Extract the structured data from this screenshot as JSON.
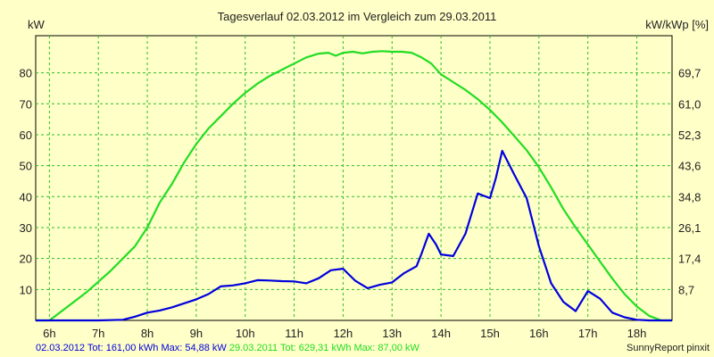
{
  "chart_data": {
    "type": "line",
    "title": "Tagesverlauf 02.03.2012 im Vergleich zum 29.03.2011",
    "ylabel_left": "kW",
    "ylabel_right": "kW/kWp [%]",
    "xlim": [
      5.72,
      18.72
    ],
    "ylim": [
      0,
      92
    ],
    "x_ticks": [
      6,
      7,
      8,
      9,
      10,
      11,
      12,
      13,
      14,
      15,
      16,
      17,
      18
    ],
    "x_tick_labels": [
      "6h",
      "7h",
      "8h",
      "9h",
      "10h",
      "11h",
      "12h",
      "13h",
      "14h",
      "15h",
      "16h",
      "17h",
      "18h"
    ],
    "y_ticks_left": [
      10,
      20,
      30,
      40,
      50,
      60,
      70,
      80
    ],
    "y_tick_labels_left": [
      "10",
      "20",
      "30",
      "40",
      "50",
      "60",
      "70",
      "80"
    ],
    "y_ticks_right": [
      10,
      20,
      30,
      40,
      50,
      60,
      70,
      80
    ],
    "y_tick_labels_right": [
      "8,7",
      "17,4",
      "26,1",
      "34,8",
      "43,6",
      "52,3",
      "61,0",
      "69,7"
    ],
    "grid": true,
    "series": [
      {
        "name": "29.03.2011",
        "color": "#22dd22",
        "x": [
          5.72,
          6.0,
          6.25,
          6.5,
          6.75,
          7.0,
          7.25,
          7.5,
          7.75,
          8.0,
          8.25,
          8.5,
          8.75,
          9.0,
          9.25,
          9.5,
          9.75,
          10.0,
          10.25,
          10.5,
          10.75,
          11.0,
          11.25,
          11.5,
          11.7,
          11.85,
          12.0,
          12.2,
          12.4,
          12.6,
          12.8,
          13.0,
          13.2,
          13.4,
          13.6,
          13.8,
          14.0,
          14.25,
          14.5,
          14.75,
          15.0,
          15.25,
          15.5,
          15.75,
          16.0,
          16.25,
          16.5,
          16.75,
          17.0,
          17.25,
          17.5,
          17.75,
          18.0,
          18.25,
          18.5,
          18.72
        ],
        "y": [
          0,
          0,
          3,
          6,
          9,
          12.5,
          16,
          20,
          24,
          30,
          38,
          44,
          51,
          57,
          62,
          66,
          70,
          73.5,
          76.5,
          79,
          81,
          83,
          85,
          86.2,
          86.5,
          85.5,
          86.5,
          86.8,
          86.3,
          86.8,
          87,
          86.8,
          86.8,
          86.5,
          85,
          83,
          79.5,
          77,
          74.5,
          71.5,
          68,
          64,
          59.5,
          55,
          49.5,
          43,
          36,
          30,
          24.5,
          19,
          13.5,
          8.5,
          4.5,
          1.5,
          0,
          0
        ]
      },
      {
        "name": "02.03.2012",
        "color": "#0000dd",
        "x": [
          5.72,
          7.0,
          7.5,
          7.75,
          8.0,
          8.25,
          8.5,
          8.75,
          9.0,
          9.25,
          9.5,
          9.75,
          10.0,
          10.25,
          10.5,
          10.75,
          11.0,
          11.25,
          11.5,
          11.75,
          12.0,
          12.25,
          12.5,
          12.75,
          13.0,
          13.25,
          13.5,
          13.6,
          13.75,
          13.9,
          14.0,
          14.25,
          14.5,
          14.75,
          15.0,
          15.12,
          15.25,
          15.5,
          15.75,
          16.0,
          16.25,
          16.5,
          16.75,
          17.0,
          17.25,
          17.5,
          17.75,
          18.0,
          18.25,
          18.72
        ],
        "y": [
          0,
          0,
          0.2,
          1.2,
          2.5,
          3.2,
          4.2,
          5.5,
          6.8,
          8.5,
          11,
          11.3,
          12,
          13,
          12.9,
          12.7,
          12.6,
          12,
          13.6,
          16.2,
          16.7,
          12.8,
          10.4,
          11.5,
          12.3,
          15.3,
          17.5,
          21.5,
          28,
          24.5,
          21.3,
          20.8,
          28,
          41,
          39.5,
          46,
          54.8,
          47,
          39.5,
          24,
          12,
          6,
          3,
          9.5,
          7,
          2.5,
          1,
          0.2,
          0,
          0
        ]
      }
    ],
    "footer_left": [
      {
        "text": "02.03.2012 Tot: 161,00 kWh Max: 54,88 kW",
        "color": "#0000dd"
      },
      {
        "text": " 29.03.2011 Tot: 629,31 kWh Max: 87,00 kW",
        "color": "#22dd22"
      }
    ],
    "footer_right": "SunnyReport pinxit"
  }
}
